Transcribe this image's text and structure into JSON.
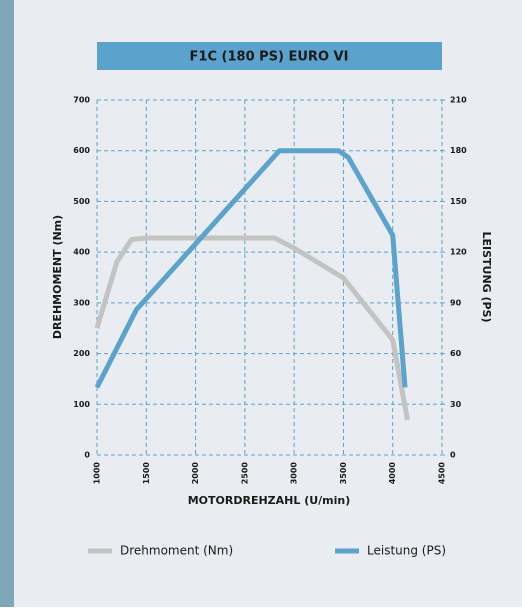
{
  "chart_data": {
    "type": "line",
    "title": "F1C (180 PS) EURO VI",
    "xlabel": "MOTORDREHZAHL (U/min)",
    "ylabel": "DREHMOMENT (Nm)",
    "y2label": "LEISTUNG (PS)",
    "xlim": [
      1000,
      4500
    ],
    "xticks": [
      1000,
      1500,
      2000,
      2500,
      3000,
      3500,
      4000,
      4500
    ],
    "ylim": [
      0,
      700
    ],
    "yticks": [
      0,
      100,
      200,
      300,
      400,
      500,
      600,
      700
    ],
    "y2lim": [
      0,
      210
    ],
    "y2ticks": [
      0,
      30,
      60,
      90,
      120,
      150,
      180,
      210
    ],
    "grid": true,
    "legend": "bottom",
    "series": [
      {
        "name": "Drehmoment (Nm)",
        "color": "#c3c3c3",
        "axis": "y",
        "x": [
          1000,
          1200,
          1350,
          1500,
          2000,
          2500,
          2800,
          3000,
          3500,
          4000,
          4150
        ],
        "values": [
          250,
          380,
          425,
          428,
          428,
          428,
          428,
          408,
          349,
          227,
          69
        ]
      },
      {
        "name": "Leistung (PS)",
        "color": "#5ba3cc",
        "axis": "y2",
        "x": [
          1000,
          1400,
          2850,
          3000,
          3450,
          3550,
          4000,
          4125
        ],
        "values": [
          40,
          86,
          180,
          180,
          180,
          176,
          130,
          40
        ]
      }
    ]
  }
}
